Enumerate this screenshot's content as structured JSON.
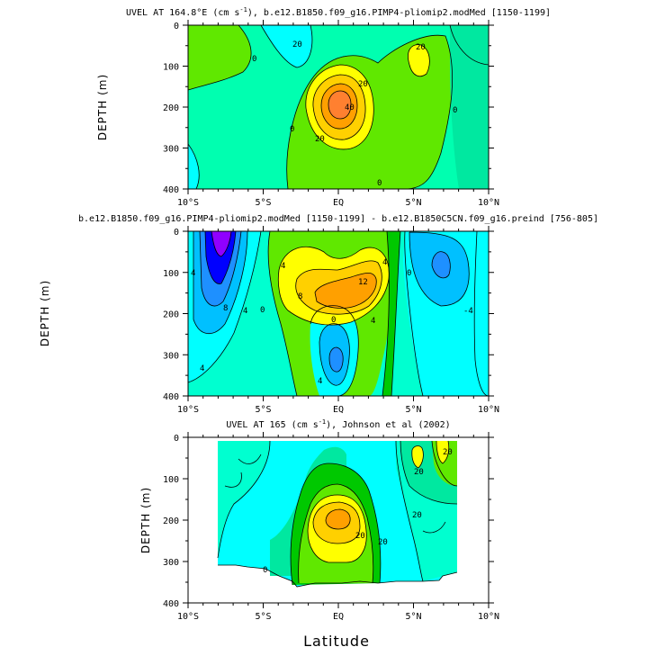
{
  "colors": {
    "c1": "#00ffff",
    "c2": "#00e8a0",
    "c3": "#00c800",
    "c4": "#60e800",
    "c5": "#ffff00",
    "c6": "#ffd000",
    "c7": "#ffa000",
    "c8": "#ff8030",
    "c9": "#a0a0ff",
    "c10": "#0000ff",
    "c11": "#9000ff",
    "c12": "#5090ff",
    "c13": "#1e90ff",
    "c14": "#00c0ff",
    "c15": "#00ffd0",
    "bg": "#00ffb0"
  },
  "xlabel": "Latitude",
  "chart_data": [
    {
      "type": "contour",
      "title": "UVEL AT 164.8°E (cm s",
      "title_sup": "-1",
      "title_rest": "), b.e12.B1850.f09_g16.PIMP4-pliomip2.modMed [1150-1199]",
      "ylabel": "DEPTH (m)",
      "xlim": [
        -10,
        10
      ],
      "ylim": [
        400,
        0
      ],
      "xticks": [
        "10°S",
        "5°S",
        "EQ",
        "5°N",
        "10°N"
      ],
      "yticks": [
        "0",
        "100",
        "200",
        "300",
        "400"
      ],
      "contour_labels": [
        "20",
        "0",
        "20",
        "20",
        "40",
        "20",
        "0",
        "0",
        "0"
      ]
    },
    {
      "type": "contour",
      "title": "b.e12.B1850.f09_g16.PIMP4-pliomip2.modMed [1150-1199] - b.e12.B1850C5CN.f09_g16.preind [756-805]",
      "ylabel": "DEPTH (m)",
      "xlim": [
        -10,
        10
      ],
      "ylim": [
        400,
        0
      ],
      "xticks": [
        "10°S",
        "5°S",
        "EQ",
        "5°N",
        "10°N"
      ],
      "yticks": [
        "0",
        "100",
        "200",
        "300",
        "400"
      ],
      "contour_labels": [
        "4",
        "8",
        "4",
        "0",
        "4",
        "8",
        "12",
        "4",
        "4",
        "0",
        "4",
        "-4",
        "0",
        "4"
      ]
    },
    {
      "type": "contour",
      "title": "UVEL AT 165 (cm s",
      "title_sup": "-1",
      "title_rest": "), Johnson et al (2002)",
      "ylabel": "DEPTH (m)",
      "xlim": [
        -10,
        10
      ],
      "ylim": [
        400,
        0
      ],
      "xticks": [
        "10°S",
        "5°S",
        "EQ",
        "5°N",
        "10°N"
      ],
      "yticks": [
        "0",
        "100",
        "200",
        "300",
        "400"
      ],
      "contour_labels": [
        "20",
        "20",
        "20",
        "20",
        "20",
        "0"
      ]
    }
  ]
}
